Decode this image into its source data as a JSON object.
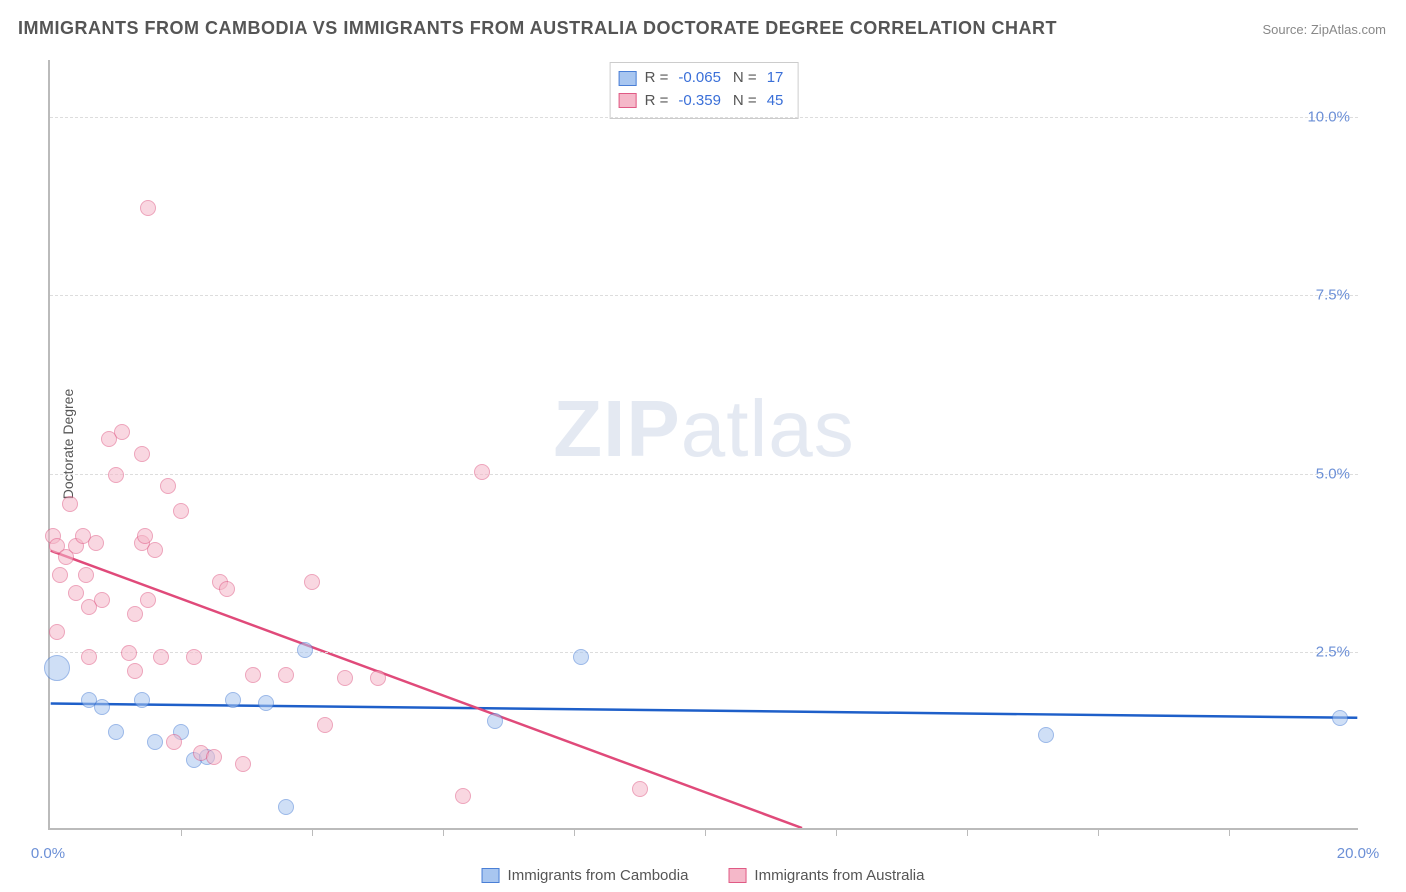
{
  "title": "IMMIGRANTS FROM CAMBODIA VS IMMIGRANTS FROM AUSTRALIA DOCTORATE DEGREE CORRELATION CHART",
  "source": "Source: ZipAtlas.com",
  "watermark_bold": "ZIP",
  "watermark_rest": "atlas",
  "y_axis_label": "Doctorate Degree",
  "chart": {
    "type": "scatter",
    "xlim": [
      0,
      20
    ],
    "ylim": [
      0,
      10.8
    ],
    "x_ticks": [
      0,
      20
    ],
    "x_tick_labels": [
      "0.0%",
      "20.0%"
    ],
    "x_minor_ticks": [
      2,
      4,
      6,
      8,
      10,
      12,
      14,
      16,
      18
    ],
    "y_ticks": [
      2.5,
      5.0,
      7.5,
      10.0
    ],
    "y_tick_labels": [
      "2.5%",
      "5.0%",
      "7.5%",
      "10.0%"
    ],
    "background_color": "#ffffff",
    "grid_color": "#dddddd",
    "axis_color": "#bbbbbb",
    "tick_label_color": "#6b8fd6",
    "series": [
      {
        "name": "Immigrants from Cambodia",
        "fill": "#a8c6f0",
        "stroke": "#4a7fd6",
        "fill_opacity": 0.55,
        "marker_radius": 8,
        "trend_color": "#1e5fc9",
        "trend_width": 2.5,
        "trend": {
          "x1": 0,
          "y1": 1.75,
          "x2": 20,
          "y2": 1.55
        },
        "R_label": "R =",
        "R": "-0.065",
        "N_label": "N =",
        "N": "17",
        "points": [
          {
            "x": 0.1,
            "y": 2.25,
            "r": 13
          },
          {
            "x": 0.6,
            "y": 1.8
          },
          {
            "x": 0.8,
            "y": 1.7
          },
          {
            "x": 1.0,
            "y": 1.35
          },
          {
            "x": 1.4,
            "y": 1.8
          },
          {
            "x": 1.6,
            "y": 1.2
          },
          {
            "x": 2.0,
            "y": 1.35
          },
          {
            "x": 2.2,
            "y": 0.95
          },
          {
            "x": 2.4,
            "y": 1.0
          },
          {
            "x": 2.8,
            "y": 1.8
          },
          {
            "x": 3.3,
            "y": 1.75
          },
          {
            "x": 3.6,
            "y": 0.3
          },
          {
            "x": 3.9,
            "y": 2.5
          },
          {
            "x": 6.8,
            "y": 1.5
          },
          {
            "x": 8.1,
            "y": 2.4
          },
          {
            "x": 15.2,
            "y": 1.3
          },
          {
            "x": 19.7,
            "y": 1.55
          }
        ]
      },
      {
        "name": "Immigrants from Australia",
        "fill": "#f5b8c9",
        "stroke": "#e05a85",
        "fill_opacity": 0.55,
        "marker_radius": 8,
        "trend_color": "#e04a7a",
        "trend_width": 2.5,
        "trend": {
          "x1": 0,
          "y1": 3.9,
          "x2": 11.5,
          "y2": 0
        },
        "trend_dash": {
          "x1": 9.0,
          "y1": 0.85,
          "x2": 11.5,
          "y2": 0
        },
        "R_label": "R =",
        "R": "-0.359",
        "N_label": "N =",
        "N": "45",
        "points": [
          {
            "x": 0.05,
            "y": 4.1
          },
          {
            "x": 0.1,
            "y": 3.95
          },
          {
            "x": 0.15,
            "y": 3.55
          },
          {
            "x": 0.1,
            "y": 2.75
          },
          {
            "x": 0.3,
            "y": 4.55
          },
          {
            "x": 0.25,
            "y": 3.8
          },
          {
            "x": 0.4,
            "y": 3.95
          },
          {
            "x": 0.4,
            "y": 3.3
          },
          {
            "x": 0.5,
            "y": 4.1
          },
          {
            "x": 0.55,
            "y": 3.55
          },
          {
            "x": 0.6,
            "y": 3.1
          },
          {
            "x": 0.6,
            "y": 2.4
          },
          {
            "x": 0.7,
            "y": 4.0
          },
          {
            "x": 0.8,
            "y": 3.2
          },
          {
            "x": 0.9,
            "y": 5.45
          },
          {
            "x": 1.0,
            "y": 4.95
          },
          {
            "x": 1.1,
            "y": 5.55
          },
          {
            "x": 1.2,
            "y": 2.45
          },
          {
            "x": 1.3,
            "y": 3.0
          },
          {
            "x": 1.3,
            "y": 2.2
          },
          {
            "x": 1.4,
            "y": 5.25
          },
          {
            "x": 1.4,
            "y": 4.0
          },
          {
            "x": 1.45,
            "y": 4.1
          },
          {
            "x": 1.5,
            "y": 3.2
          },
          {
            "x": 1.5,
            "y": 8.7
          },
          {
            "x": 1.6,
            "y": 3.9
          },
          {
            "x": 1.7,
            "y": 2.4
          },
          {
            "x": 1.8,
            "y": 4.8
          },
          {
            "x": 1.9,
            "y": 1.2
          },
          {
            "x": 2.0,
            "y": 4.45
          },
          {
            "x": 2.2,
            "y": 2.4
          },
          {
            "x": 2.3,
            "y": 1.05
          },
          {
            "x": 2.5,
            "y": 1.0
          },
          {
            "x": 2.6,
            "y": 3.45
          },
          {
            "x": 2.7,
            "y": 3.35
          },
          {
            "x": 2.95,
            "y": 0.9
          },
          {
            "x": 3.1,
            "y": 2.15
          },
          {
            "x": 3.6,
            "y": 2.15
          },
          {
            "x": 4.0,
            "y": 3.45
          },
          {
            "x": 4.2,
            "y": 1.45
          },
          {
            "x": 4.5,
            "y": 2.1
          },
          {
            "x": 5.0,
            "y": 2.1
          },
          {
            "x": 6.3,
            "y": 0.45
          },
          {
            "x": 6.6,
            "y": 5.0
          },
          {
            "x": 9.0,
            "y": 0.55
          }
        ]
      }
    ]
  },
  "legend": {
    "item1": "Immigrants from Cambodia",
    "item2": "Immigrants from Australia"
  }
}
